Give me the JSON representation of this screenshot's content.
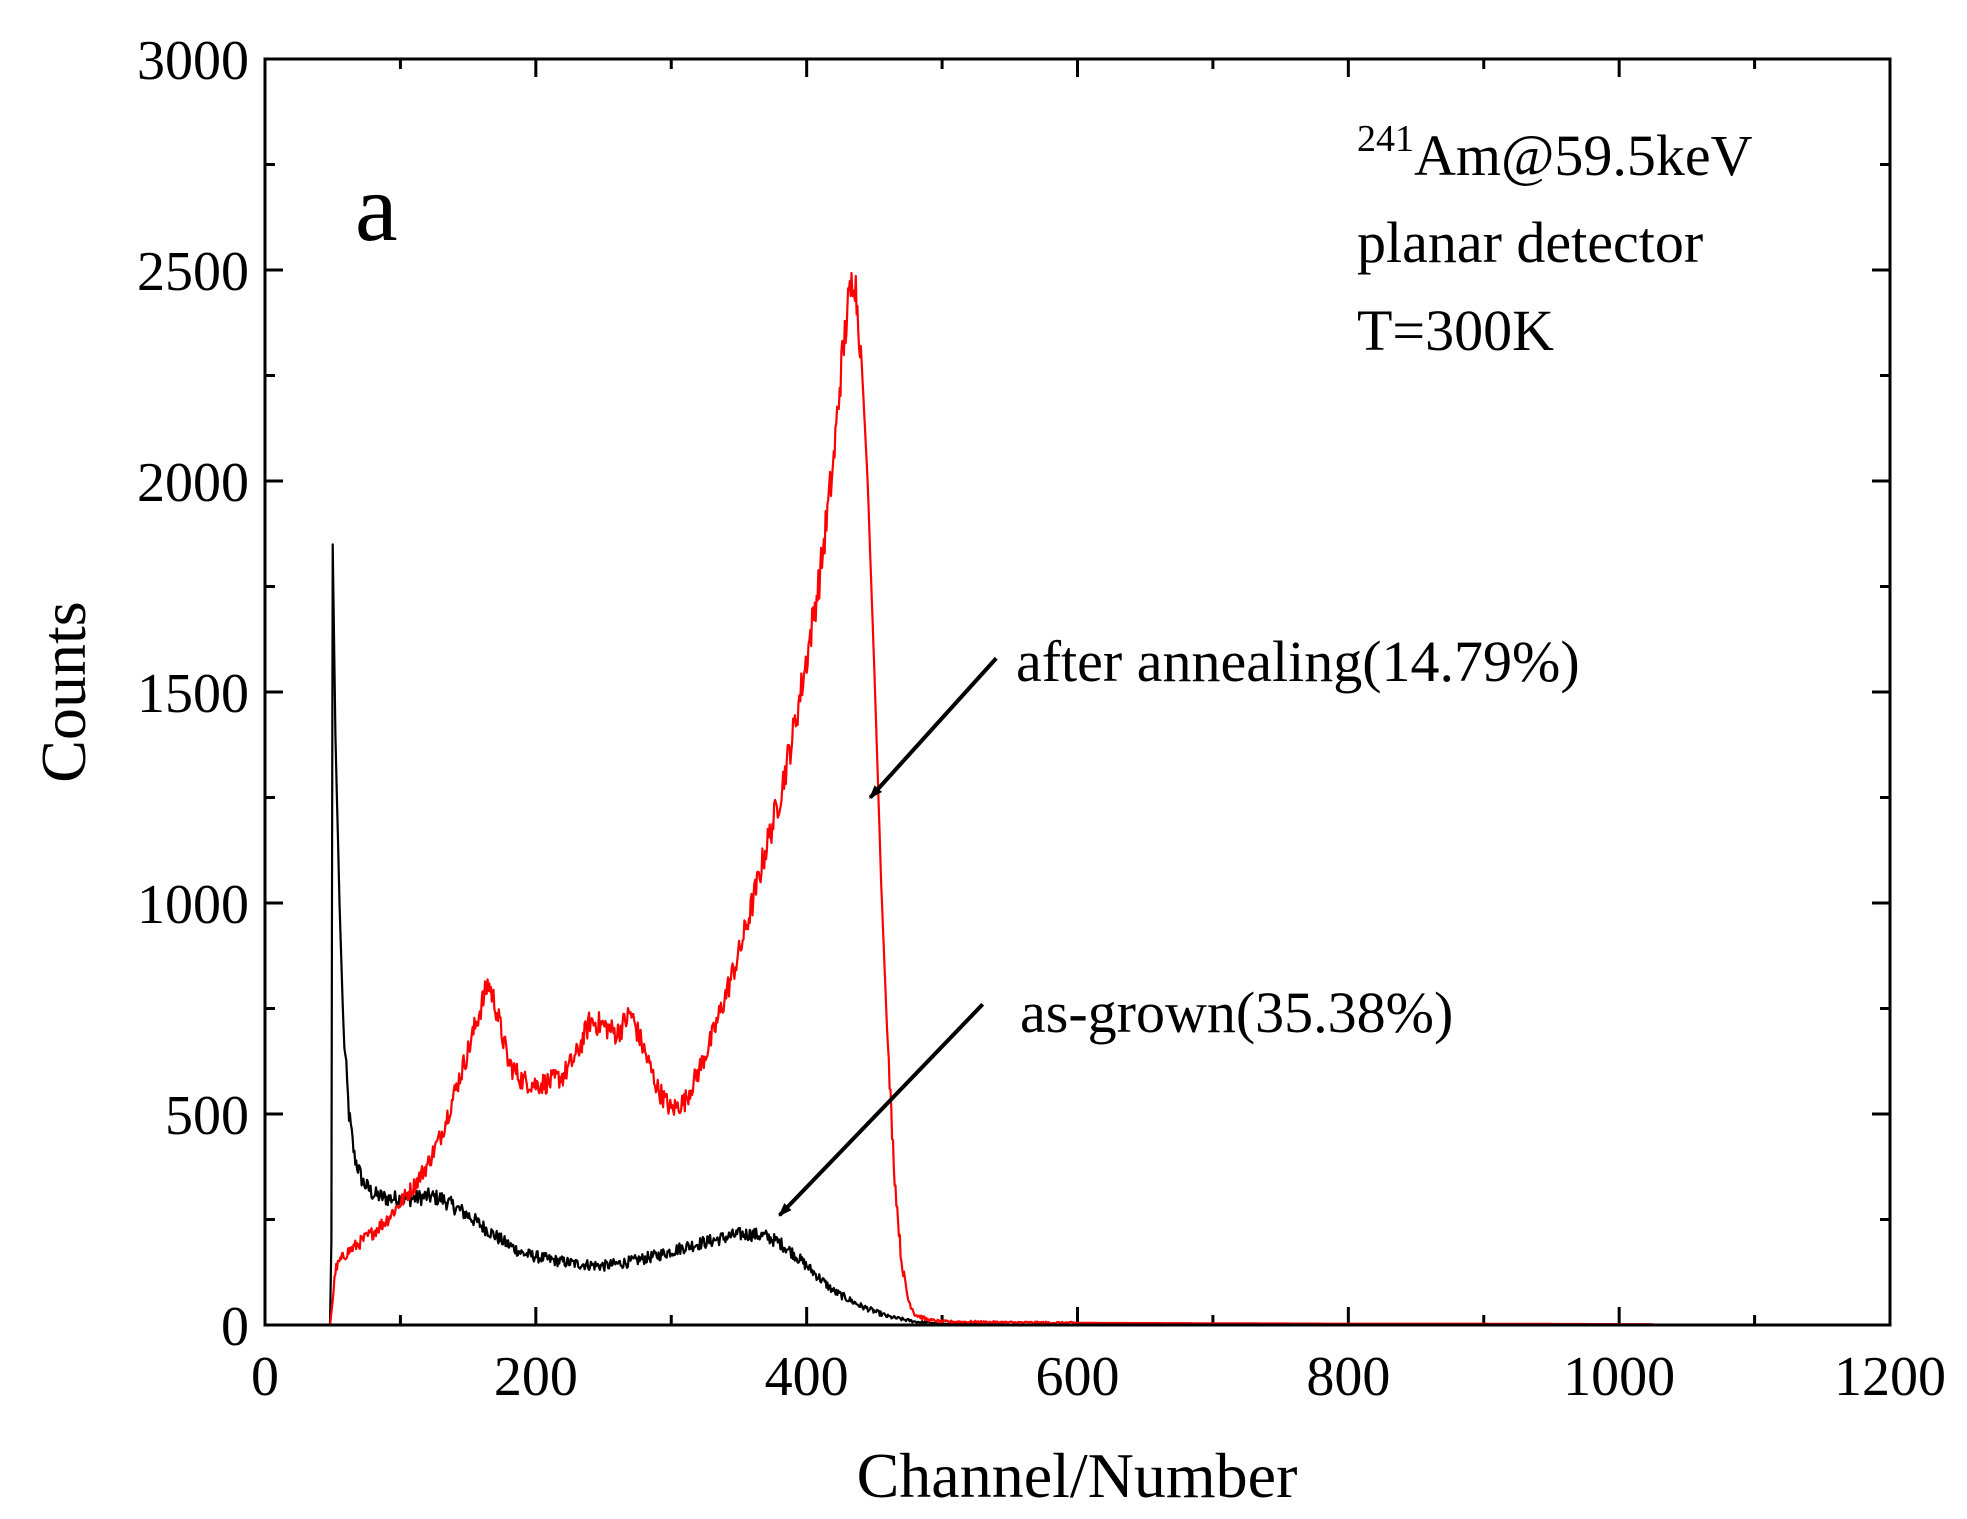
{
  "chart_data": {
    "type": "line",
    "panel_label": "a",
    "xlabel": "Channel/Number",
    "ylabel": "Counts",
    "xlim": [
      0,
      1200
    ],
    "ylim": [
      0,
      3000
    ],
    "xticks": [
      0,
      200,
      400,
      600,
      800,
      1000,
      1200
    ],
    "yticks": [
      0,
      500,
      1000,
      1500,
      2000,
      2500,
      3000
    ],
    "xtick_labels": [
      "0",
      "200",
      "400",
      "600",
      "800",
      "1000",
      "1200"
    ],
    "ytick_labels": [
      "0",
      "500",
      "1000",
      "1500",
      "2000",
      "2500",
      "3000"
    ],
    "info": {
      "isotope_mass": "241",
      "source": "Am@59.5keV",
      "detector": "planar detector",
      "temperature": "T=300K"
    },
    "series": [
      {
        "name": "as-grown(35.38%)",
        "color": "#000000",
        "x": [
          0,
          48,
          49,
          50,
          52,
          55,
          58,
          62,
          66,
          72,
          80,
          90,
          100,
          110,
          120,
          130,
          140,
          150,
          160,
          175,
          190,
          210,
          230,
          250,
          270,
          290,
          310,
          330,
          350,
          360,
          370,
          380,
          390,
          400,
          410,
          420,
          440,
          460,
          480,
          500,
          550,
          600,
          800,
          1000,
          1025
        ],
        "y": [
          0,
          0,
          200,
          1850,
          1400,
          1000,
          700,
          500,
          400,
          340,
          310,
          300,
          300,
          300,
          305,
          300,
          280,
          260,
          235,
          200,
          170,
          155,
          145,
          140,
          150,
          165,
          185,
          200,
          215,
          215,
          210,
          195,
          170,
          140,
          110,
          80,
          45,
          20,
          8,
          3,
          1,
          0,
          0,
          0,
          0
        ]
      },
      {
        "name": "after annealing(14.79%)",
        "color": "#ff0000",
        "x": [
          0,
          48,
          50,
          52,
          55,
          60,
          70,
          80,
          90,
          100,
          110,
          120,
          130,
          140,
          150,
          160,
          165,
          170,
          180,
          190,
          200,
          210,
          220,
          230,
          240,
          250,
          260,
          270,
          280,
          290,
          300,
          310,
          320,
          330,
          340,
          350,
          360,
          370,
          380,
          390,
          400,
          410,
          420,
          425,
          430,
          435,
          440,
          445,
          450,
          455,
          460,
          465,
          470,
          475,
          480,
          490,
          500,
          550,
          600,
          700,
          800,
          900,
          1000,
          1025
        ],
        "y": [
          0,
          0,
          60,
          130,
          150,
          170,
          195,
          220,
          250,
          290,
          330,
          380,
          450,
          550,
          650,
          760,
          810,
          760,
          620,
          580,
          570,
          575,
          590,
          640,
          720,
          710,
          690,
          740,
          650,
          560,
          510,
          530,
          600,
          680,
          780,
          880,
          1000,
          1130,
          1250,
          1400,
          1580,
          1780,
          2050,
          2250,
          2400,
          2500,
          2320,
          2000,
          1550,
          1050,
          650,
          350,
          150,
          60,
          25,
          12,
          8,
          6,
          5,
          4,
          3,
          3,
          2,
          2
        ]
      }
    ],
    "annotations": [
      {
        "text": "after annealing(14.79%)",
        "arrow_from": [
          540,
          1580
        ],
        "arrow_to": [
          447,
          1250
        ]
      },
      {
        "text": "as-grown(35.38%)",
        "arrow_from": [
          530,
          760
        ],
        "arrow_to": [
          380,
          260
        ]
      }
    ]
  }
}
